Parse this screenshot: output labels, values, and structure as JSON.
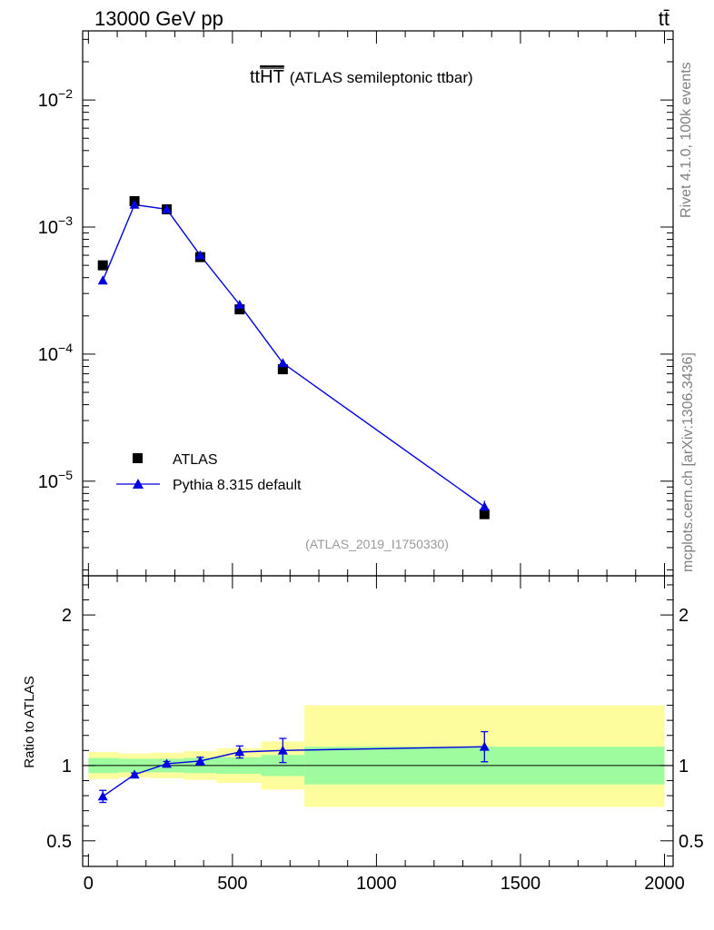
{
  "header": {
    "left_label": "13000 GeV pp",
    "right_label": "tt̄"
  },
  "side_labels": {
    "top": "Rivet 4.1.0,  100k events",
    "bottom": "mcplots.cern.ch [arXiv:1306.3436]"
  },
  "colors": {
    "data": "#000000",
    "mc": "#0000e0",
    "band_inner": "#9efb9e",
    "band_outer": "#fdfd9e"
  },
  "chart_data": [
    {
      "type": "scatter",
      "panel": "main",
      "title_main": "tt",
      "title_overline": "HT",
      "title_rest": "(ATLAS semileptonic ttbar)",
      "analysis_label": "(ATLAS_2019_I1750330)",
      "yscale": "log",
      "xlim": [
        -20,
        2030
      ],
      "ylim": [
        1.8e-06,
        0.035
      ],
      "y_tick_labels": [
        {
          "value": 1e-05,
          "base": "10",
          "exp": "−5"
        },
        {
          "value": 0.0001,
          "base": "10",
          "exp": "−4"
        },
        {
          "value": 0.001,
          "base": "10",
          "exp": "−3"
        },
        {
          "value": 0.01,
          "base": "10",
          "exp": "−2"
        }
      ],
      "legend_position": "bottom-left",
      "series": [
        {
          "name": "ATLAS",
          "marker": "square",
          "x": [
            50,
            160,
            272,
            388,
            525,
            675,
            1375
          ],
          "y": [
            0.0005,
            0.0016,
            0.00138,
            0.00058,
            0.000225,
            7.6e-05,
            5.5e-06
          ],
          "yerr": [
            1.5e-05,
            4e-05,
            3e-05,
            1.5e-05,
            8e-06,
            3e-06,
            5e-07
          ]
        },
        {
          "name": "Pythia 8.315 default",
          "marker": "triangle",
          "x": [
            50,
            160,
            272,
            388,
            525,
            675,
            1375
          ],
          "y": [
            0.00038,
            0.0015,
            0.00138,
            0.0006,
            0.000245,
            8.5e-05,
            6.3e-06
          ],
          "yerr": [
            1.5e-05,
            4e-05,
            3e-05,
            2e-05,
            1.2e-05,
            6e-06,
            7e-07
          ]
        }
      ]
    },
    {
      "type": "line",
      "panel": "ratio",
      "ylabel": "Ratio to ATLAS",
      "xlim": [
        -20,
        2030
      ],
      "ylim": [
        0.33,
        2.26
      ],
      "x_ticks": [
        0,
        500,
        1000,
        1500,
        2000
      ],
      "x_tick_labels": [
        "0",
        "500",
        "1000",
        "1500",
        "2000"
      ],
      "y_ticks": [
        0.5,
        1,
        2
      ],
      "y_tick_labels": [
        "0.5",
        "1",
        "2"
      ],
      "bins": [
        {
          "lo": 0,
          "hi": 105,
          "inner": [
            0.95,
            1.05
          ],
          "outer": [
            0.91,
            1.09
          ]
        },
        {
          "lo": 105,
          "hi": 215,
          "inner": [
            0.955,
            1.045
          ],
          "outer": [
            0.92,
            1.08
          ]
        },
        {
          "lo": 215,
          "hi": 330,
          "inner": [
            0.955,
            1.045
          ],
          "outer": [
            0.915,
            1.085
          ]
        },
        {
          "lo": 330,
          "hi": 445,
          "inner": [
            0.95,
            1.05
          ],
          "outer": [
            0.905,
            1.095
          ]
        },
        {
          "lo": 445,
          "hi": 600,
          "inner": [
            0.945,
            1.055
          ],
          "outer": [
            0.885,
            1.115
          ]
        },
        {
          "lo": 600,
          "hi": 750,
          "inner": [
            0.93,
            1.07
          ],
          "outer": [
            0.84,
            1.16
          ]
        },
        {
          "lo": 750,
          "hi": 2000,
          "inner": [
            0.875,
            1.125
          ],
          "outer": [
            0.725,
            1.4
          ]
        }
      ],
      "series": [
        {
          "name": "Pythia 8.315 default",
          "x": [
            50,
            160,
            272,
            388,
            525,
            675,
            1375
          ],
          "y": [
            0.795,
            0.94,
            1.012,
            1.03,
            1.09,
            1.1,
            1.125
          ],
          "yerr": [
            0.04,
            0.01,
            0.015,
            0.025,
            0.04,
            0.08,
            0.1
          ]
        }
      ]
    }
  ]
}
